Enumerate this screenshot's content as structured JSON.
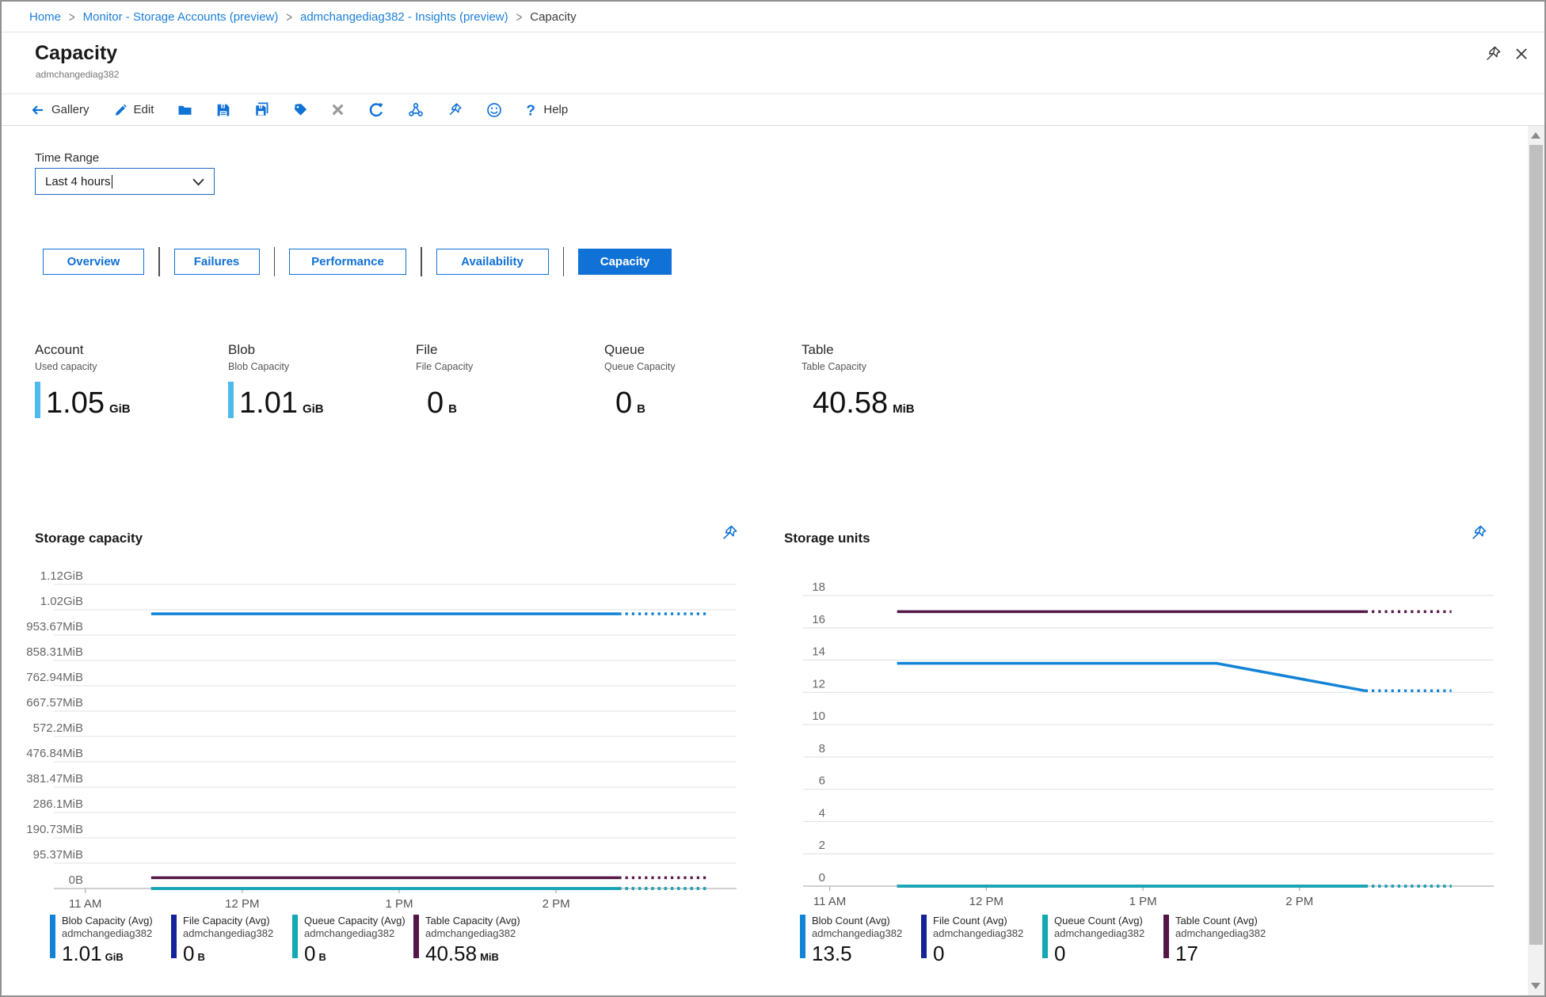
{
  "breadcrumb": {
    "items": [
      {
        "label": "Home",
        "link": true
      },
      {
        "label": "Monitor - Storage Accounts (preview)",
        "link": true
      },
      {
        "label": "admchangediag382 - Insights (preview)",
        "link": true
      },
      {
        "label": "Capacity",
        "link": false
      }
    ]
  },
  "header": {
    "title": "Capacity",
    "subtitle": "admchangediag382"
  },
  "toolbar": {
    "gallery_label": "Gallery",
    "edit_label": "Edit",
    "help_label": "Help"
  },
  "filters": {
    "time_range_label": "Time Range",
    "time_range_value": "Last 4 hours"
  },
  "tabs": [
    {
      "label": "Overview",
      "active": false
    },
    {
      "label": "Failures",
      "active": false
    },
    {
      "label": "Performance",
      "active": false
    },
    {
      "label": "Availability",
      "active": false
    },
    {
      "label": "Capacity",
      "active": true
    }
  ],
  "cards": [
    {
      "title": "Account",
      "subtitle": "Used capacity",
      "value": "1.05",
      "unit": "GiB",
      "bar": true
    },
    {
      "title": "Blob",
      "subtitle": "Blob Capacity",
      "value": "1.01",
      "unit": "GiB",
      "bar": true
    },
    {
      "title": "File",
      "subtitle": "File Capacity",
      "value": "0",
      "unit": "B",
      "bar": false
    },
    {
      "title": "Queue",
      "subtitle": "Queue Capacity",
      "value": "0",
      "unit": "B",
      "bar": false
    },
    {
      "title": "Table",
      "subtitle": "Table Capacity",
      "value": "40.58",
      "unit": "MiB",
      "bar": false
    }
  ],
  "colors": {
    "accent": "#1071d6",
    "link": "#1b7fd9",
    "card_bar": "#4db9ec",
    "series_blob": "#1283d6",
    "series_file": "#15229b",
    "series_queue": "#12a8b4",
    "series_table": "#531647"
  },
  "chart_data": [
    {
      "type": "line",
      "title": "Storage capacity",
      "x_tick_labels": [
        "11 AM",
        "12 PM",
        "1 PM",
        "2 PM"
      ],
      "x_ticks": [
        11,
        12,
        13,
        14
      ],
      "x_range": [
        10.8,
        15.15
      ],
      "y_gridline_labels": [
        "1.12GiB",
        "1.02GiB",
        "953.67MiB",
        "858.31MiB",
        "762.94MiB",
        "667.57MiB",
        "572.2MiB",
        "476.84MiB",
        "381.47MiB",
        "286.1MiB",
        "190.73MiB",
        "95.37MiB",
        "0B"
      ],
      "ylim": [
        0,
        1200
      ],
      "y_unit": "MB (decimal), axis labeled in binary units",
      "grid": true,
      "legend_position": "bottom",
      "series": [
        {
          "name": "Blob Capacity (Avg)",
          "resource": "admchangediag382",
          "display_value": "1.01",
          "display_unit": "GiB",
          "color": "#1283d6",
          "draw_order": 2,
          "solid": [
            [
              11.42,
              1084
            ],
            [
              14.4,
              1084
            ]
          ],
          "dotted": [
            [
              14.4,
              1084
            ],
            [
              14.96,
              1084
            ]
          ]
        },
        {
          "name": "File Capacity (Avg)",
          "resource": "admchangediag382",
          "display_value": "0",
          "display_unit": "B",
          "color": "#15229b",
          "draw_order": 0,
          "solid": [
            [
              11.42,
              0
            ],
            [
              14.4,
              0
            ]
          ],
          "dotted": [
            [
              14.4,
              0
            ],
            [
              14.96,
              0
            ]
          ]
        },
        {
          "name": "Queue Capacity (Avg)",
          "resource": "admchangediag382",
          "display_value": "0",
          "display_unit": "B",
          "color": "#12a8b4",
          "draw_order": 1,
          "solid": [
            [
              11.42,
              0
            ],
            [
              14.4,
              0
            ]
          ],
          "dotted": [
            [
              14.4,
              0
            ],
            [
              14.96,
              0
            ]
          ]
        },
        {
          "name": "Table Capacity (Avg)",
          "resource": "admchangediag382",
          "display_value": "40.58",
          "display_unit": "MiB",
          "color": "#531647",
          "draw_order": 3,
          "solid": [
            [
              11.42,
              42.6
            ],
            [
              14.4,
              42.6
            ]
          ],
          "dotted": [
            [
              14.4,
              42.6
            ],
            [
              14.96,
              42.6
            ]
          ]
        }
      ]
    },
    {
      "type": "line",
      "title": "Storage units",
      "x_tick_labels": [
        "11 AM",
        "12 PM",
        "1 PM",
        "2 PM"
      ],
      "x_ticks": [
        11,
        12,
        13,
        14
      ],
      "x_range": [
        10.83,
        15.24
      ],
      "y_gridline_labels": [
        "18",
        "16",
        "14",
        "12",
        "10",
        "8",
        "6",
        "4",
        "2",
        "0"
      ],
      "ylim": [
        0,
        18
      ],
      "grid": true,
      "legend_position": "bottom",
      "series": [
        {
          "name": "Blob Count (Avg)",
          "resource": "admchangediag382",
          "display_value": "13.5",
          "display_unit": "",
          "color": "#1283d6",
          "draw_order": 2,
          "solid": [
            [
              11.43,
              13.8
            ],
            [
              13.47,
              13.8
            ],
            [
              14.42,
              12.1
            ]
          ],
          "dotted": [
            [
              14.42,
              12.1
            ],
            [
              14.97,
              12.1
            ]
          ]
        },
        {
          "name": "File Count (Avg)",
          "resource": "admchangediag382",
          "display_value": "0",
          "display_unit": "",
          "color": "#15229b",
          "draw_order": 0,
          "solid": [
            [
              11.43,
              0
            ],
            [
              14.42,
              0
            ]
          ],
          "dotted": [
            [
              14.42,
              0
            ],
            [
              14.97,
              0
            ]
          ]
        },
        {
          "name": "Queue Count (Avg)",
          "resource": "admchangediag382",
          "display_value": "0",
          "display_unit": "",
          "color": "#12a8b4",
          "draw_order": 1,
          "solid": [
            [
              11.43,
              0
            ],
            [
              14.42,
              0
            ]
          ],
          "dotted": [
            [
              14.42,
              0
            ],
            [
              14.97,
              0
            ]
          ]
        },
        {
          "name": "Table Count (Avg)",
          "resource": "admchangediag382",
          "display_value": "17",
          "display_unit": "",
          "color": "#531647",
          "draw_order": 3,
          "solid": [
            [
              11.43,
              17
            ],
            [
              14.42,
              17
            ]
          ],
          "dotted": [
            [
              14.42,
              17
            ],
            [
              14.97,
              17
            ]
          ]
        }
      ]
    }
  ]
}
